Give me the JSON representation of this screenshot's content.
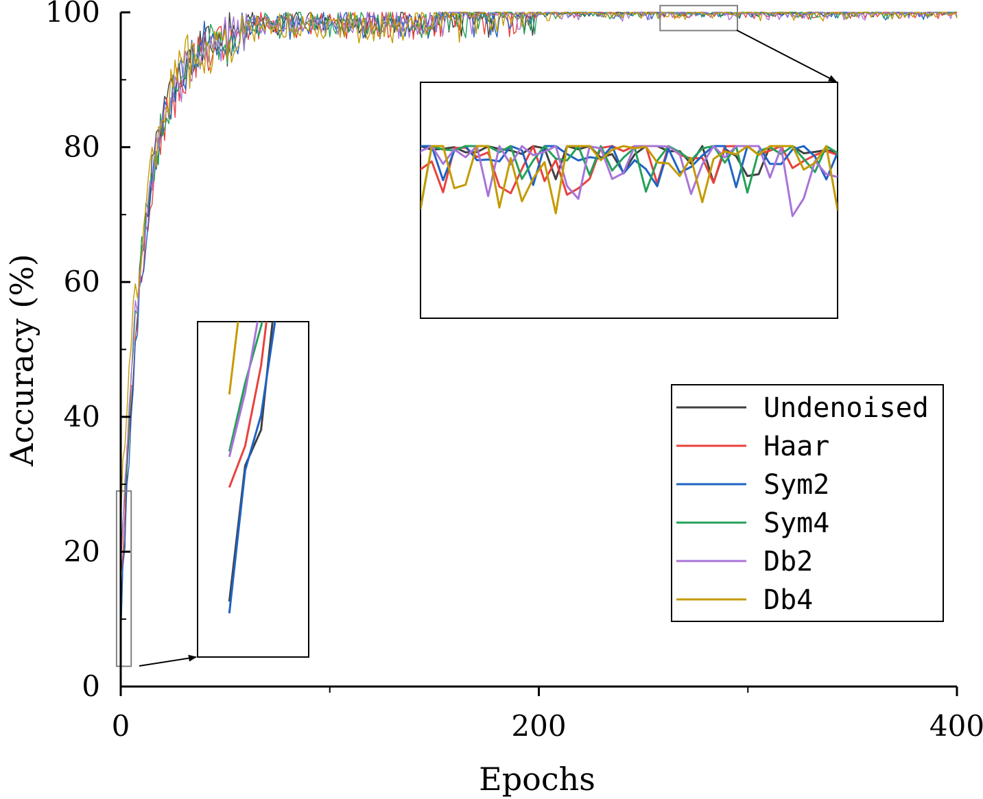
{
  "chart_data": {
    "type": "line",
    "title": "",
    "xlabel": "Epochs",
    "ylabel": "Accuracy (%)",
    "xlim": [
      0,
      400
    ],
    "ylim": [
      0,
      100
    ],
    "x_ticks": [
      "0",
      "200",
      "400"
    ],
    "y_ticks": [
      "0",
      "20",
      "40",
      "60",
      "80",
      "100"
    ],
    "legend_position": "lower-right",
    "grid": false,
    "convergence": {
      "start_y": [
        10,
        18,
        12,
        20,
        22,
        28
      ],
      "end_y": [
        100,
        100,
        100,
        100,
        100,
        100
      ],
      "rate": [
        0.1,
        0.085,
        0.09,
        0.088,
        0.086,
        0.087
      ],
      "noise_early": [
        6,
        6,
        6,
        6,
        6,
        7
      ],
      "noise_late": [
        0.6,
        0.9,
        1.0,
        1.0,
        1.1,
        1.1
      ]
    },
    "series": [
      {
        "name": "Undenoised",
        "color": "#404040"
      },
      {
        "name": "Haar",
        "color": "#e8413d"
      },
      {
        "name": "Sym2",
        "color": "#1f62c4"
      },
      {
        "name": "Sym4",
        "color": "#24a05a"
      },
      {
        "name": "Db2",
        "color": "#a874d8"
      },
      {
        "name": "Db4",
        "color": "#c49a00"
      }
    ],
    "zoom_regions": [
      {
        "x_range": [
          -2,
          5
        ],
        "y_range": [
          3,
          29
        ]
      },
      {
        "x_range": [
          258,
          295
        ],
        "y_range": [
          97.3,
          101
        ]
      }
    ]
  }
}
